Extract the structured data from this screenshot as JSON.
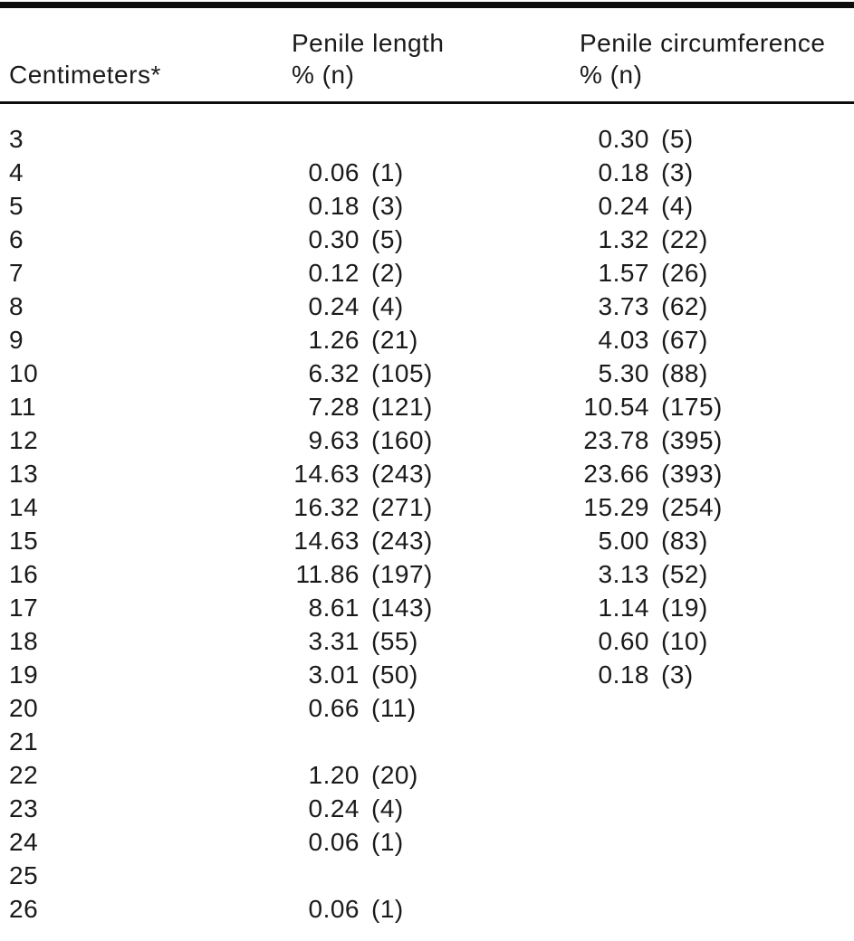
{
  "page": {
    "background_color": "#ffffff",
    "text_color": "#1a1a1a",
    "rule_color": "#0d0d0d"
  },
  "table": {
    "header": {
      "row_label": "Centimeters*",
      "length_group": {
        "title": "Penile length",
        "subtitle": "% (n)"
      },
      "circumference_group": {
        "title": "Penile circumference",
        "subtitle": "% (n)"
      }
    },
    "rows": [
      {
        "cm": "3",
        "length_pct": "",
        "length_n": "",
        "circumference_pct": "0.30",
        "circumference_n": "(5)"
      },
      {
        "cm": "4",
        "length_pct": "0.06",
        "length_n": "(1)",
        "circumference_pct": "0.18",
        "circumference_n": "(3)"
      },
      {
        "cm": "5",
        "length_pct": "0.18",
        "length_n": "(3)",
        "circumference_pct": "0.24",
        "circumference_n": "(4)"
      },
      {
        "cm": "6",
        "length_pct": "0.30",
        "length_n": "(5)",
        "circumference_pct": "1.32",
        "circumference_n": "(22)"
      },
      {
        "cm": "7",
        "length_pct": "0.12",
        "length_n": "(2)",
        "circumference_pct": "1.57",
        "circumference_n": "(26)"
      },
      {
        "cm": "8",
        "length_pct": "0.24",
        "length_n": "(4)",
        "circumference_pct": "3.73",
        "circumference_n": "(62)"
      },
      {
        "cm": "9",
        "length_pct": "1.26",
        "length_n": "(21)",
        "circumference_pct": "4.03",
        "circumference_n": "(67)"
      },
      {
        "cm": "10",
        "length_pct": "6.32",
        "length_n": "(105)",
        "circumference_pct": "5.30",
        "circumference_n": "(88)"
      },
      {
        "cm": "11",
        "length_pct": "7.28",
        "length_n": "(121)",
        "circumference_pct": "10.54",
        "circumference_n": "(175)"
      },
      {
        "cm": "12",
        "length_pct": "9.63",
        "length_n": "(160)",
        "circumference_pct": "23.78",
        "circumference_n": "(395)"
      },
      {
        "cm": "13",
        "length_pct": "14.63",
        "length_n": "(243)",
        "circumference_pct": "23.66",
        "circumference_n": "(393)"
      },
      {
        "cm": "14",
        "length_pct": "16.32",
        "length_n": "(271)",
        "circumference_pct": "15.29",
        "circumference_n": "(254)"
      },
      {
        "cm": "15",
        "length_pct": "14.63",
        "length_n": "(243)",
        "circumference_pct": "5.00",
        "circumference_n": "(83)"
      },
      {
        "cm": "16",
        "length_pct": "11.86",
        "length_n": "(197)",
        "circumference_pct": "3.13",
        "circumference_n": "(52)"
      },
      {
        "cm": "17",
        "length_pct": "8.61",
        "length_n": "(143)",
        "circumference_pct": "1.14",
        "circumference_n": "(19)"
      },
      {
        "cm": "18",
        "length_pct": "3.31",
        "length_n": "(55)",
        "circumference_pct": "0.60",
        "circumference_n": "(10)"
      },
      {
        "cm": "19",
        "length_pct": "3.01",
        "length_n": "(50)",
        "circumference_pct": "0.18",
        "circumference_n": "(3)"
      },
      {
        "cm": "20",
        "length_pct": "0.66",
        "length_n": "(11)",
        "circumference_pct": "",
        "circumference_n": ""
      },
      {
        "cm": "21",
        "length_pct": "",
        "length_n": "",
        "circumference_pct": "",
        "circumference_n": ""
      },
      {
        "cm": "22",
        "length_pct": "1.20",
        "length_n": "(20)",
        "circumference_pct": "",
        "circumference_n": ""
      },
      {
        "cm": "23",
        "length_pct": "0.24",
        "length_n": "(4)",
        "circumference_pct": "",
        "circumference_n": ""
      },
      {
        "cm": "24",
        "length_pct": "0.06",
        "length_n": "(1)",
        "circumference_pct": "",
        "circumference_n": ""
      },
      {
        "cm": "25",
        "length_pct": "",
        "length_n": "",
        "circumference_pct": "",
        "circumference_n": ""
      },
      {
        "cm": "26",
        "length_pct": "0.06",
        "length_n": "(1)",
        "circumference_pct": "",
        "circumference_n": ""
      }
    ]
  }
}
